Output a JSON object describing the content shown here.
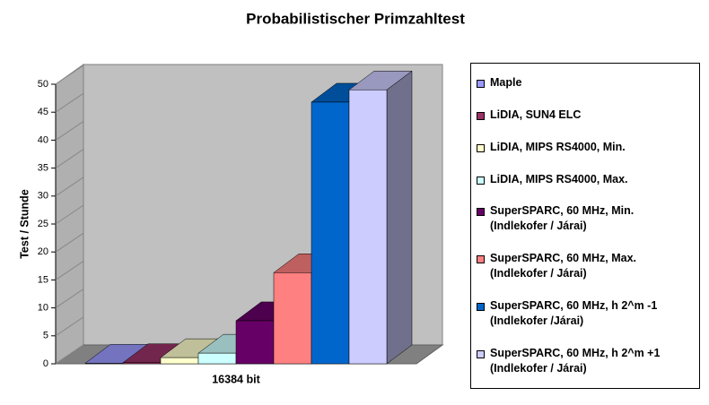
{
  "chart_data": {
    "type": "bar3d",
    "title": "Probabilistischer Primzahltest",
    "y_label": "Test / Stunde",
    "categories": [
      "16384 bit"
    ],
    "series": [
      {
        "name": "Maple",
        "color": "#9999ff",
        "values": [
          0.1
        ]
      },
      {
        "name": "LiDIA, SUN4 ELC",
        "color": "#993366",
        "values": [
          0.2
        ]
      },
      {
        "name": "LiDIA, MIPS RS4000, Min.",
        "color": "#ffffcc",
        "values": [
          1.1
        ]
      },
      {
        "name": "LiDIA, MIPS RS4000, Max.",
        "color": "#ccffff",
        "values": [
          1.9
        ]
      },
      {
        "name": "SuperSPARC, 60 MHz, Min. (Indlekofer / Járai)",
        "color": "#660066",
        "values": [
          7.7
        ]
      },
      {
        "name": "SuperSPARC, 60 MHz, Max. (Indlekofer / Járai)",
        "color": "#ff8080",
        "values": [
          16.3
        ]
      },
      {
        "name": "SuperSPARC, 60 MHz, h 2^m -1 (Indlekofer /Járai)",
        "color": "#0066cc",
        "values": [
          46.8
        ]
      },
      {
        "name": "SuperSPARC, 60 MHz, h 2^m +1 (Indlekofer / Járai)",
        "color": "#ccccff",
        "values": [
          49
        ]
      }
    ],
    "ylim": [
      0,
      50
    ],
    "yticks": [
      0,
      5,
      10,
      15,
      20,
      25,
      30,
      35,
      40,
      45,
      50
    ],
    "legend": "right"
  }
}
